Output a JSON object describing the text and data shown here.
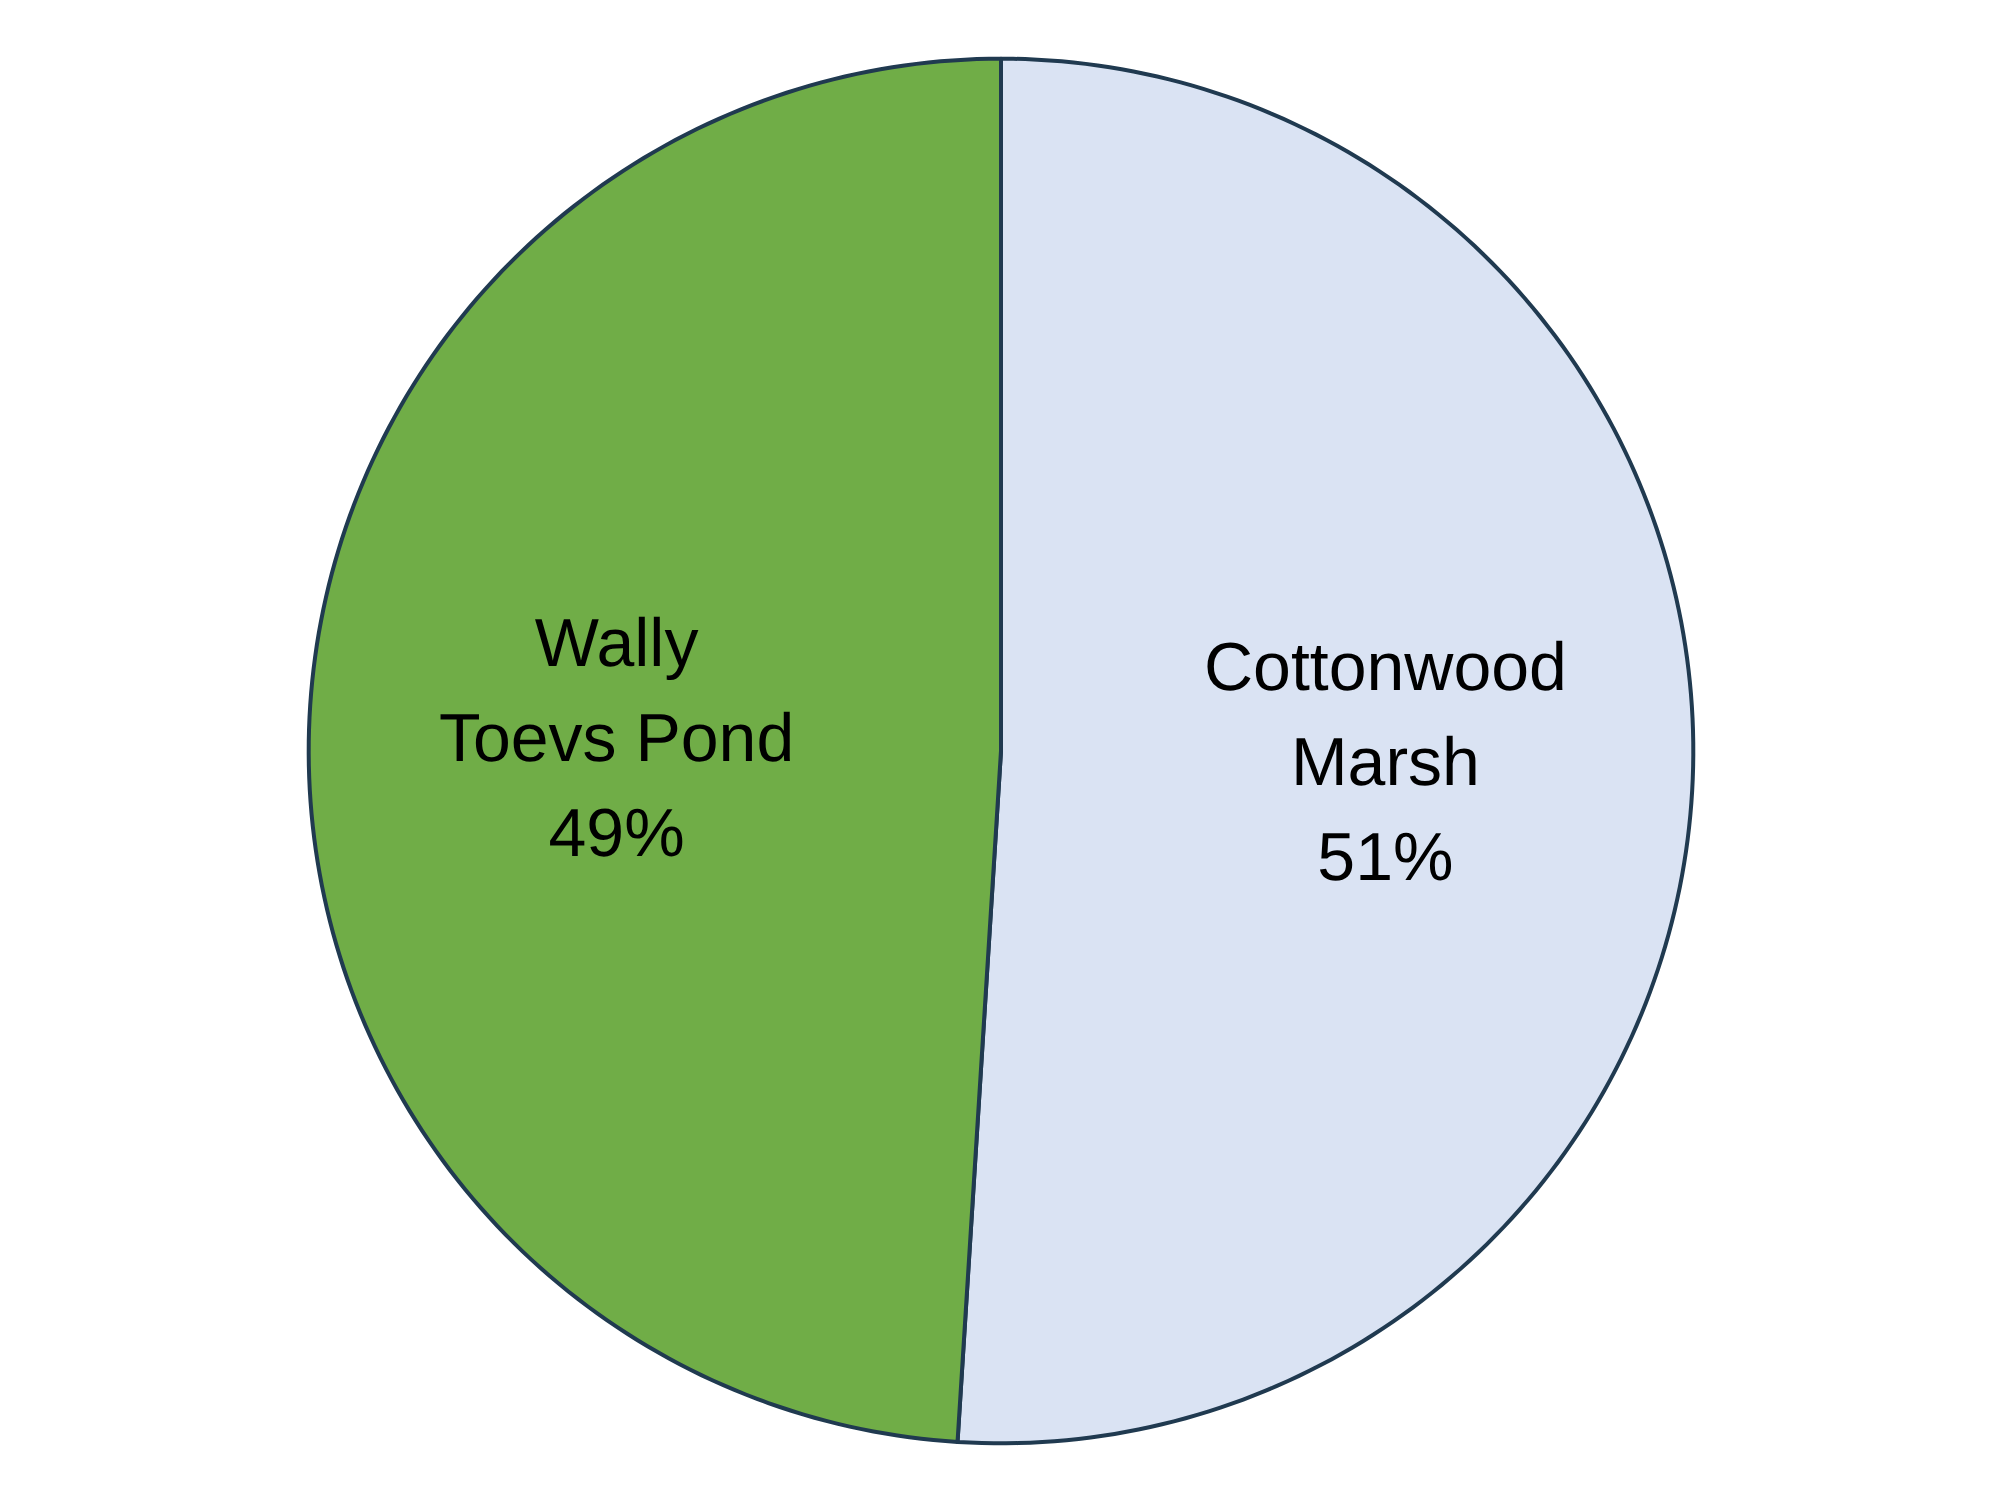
{
  "chart_data": {
    "type": "pie",
    "categories": [
      "Cottonwood Marsh",
      "Wally Toevs Pond"
    ],
    "values": [
      51,
      49
    ],
    "colors": [
      "#dae3f3",
      "#70ad47"
    ],
    "data_labels": true,
    "value_labels": [
      "51%",
      "49%"
    ],
    "legend": false
  }
}
